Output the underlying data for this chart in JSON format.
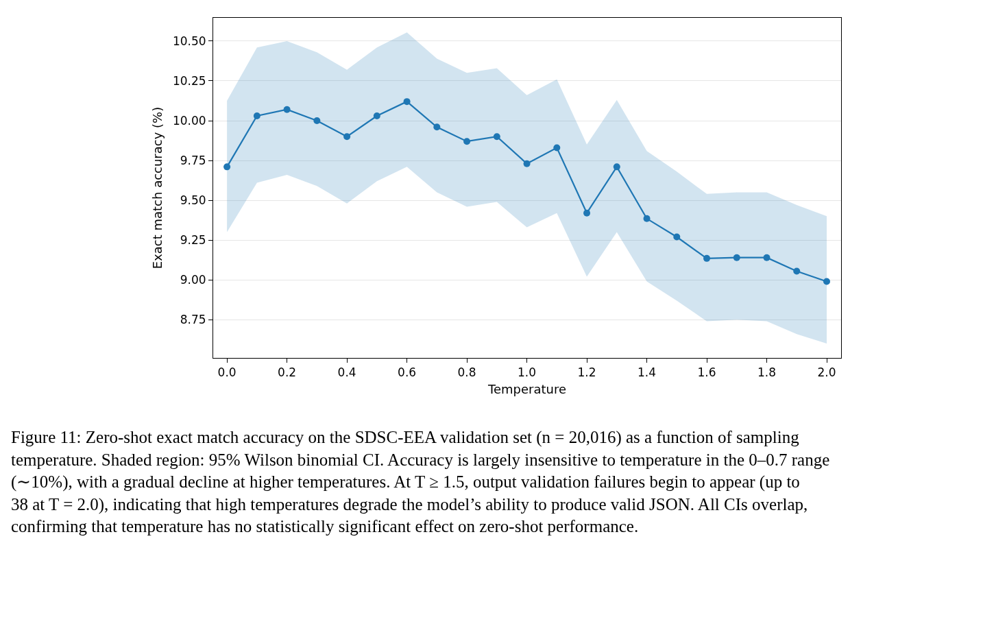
{
  "chart_data": {
    "type": "line",
    "xlabel": "Temperature",
    "ylabel": "Exact match accuracy (%)",
    "x": [
      0.0,
      0.1,
      0.2,
      0.3,
      0.4,
      0.5,
      0.6,
      0.7,
      0.8,
      0.9,
      1.0,
      1.1,
      1.2,
      1.3,
      1.4,
      1.5,
      1.6,
      1.7,
      1.8,
      1.9,
      2.0
    ],
    "series": [
      {
        "color": "#1f77b4",
        "values": [
          9.71,
          10.03,
          10.07,
          10.0,
          9.9,
          10.03,
          10.12,
          9.96,
          9.87,
          9.9,
          9.73,
          9.83,
          9.42,
          9.71,
          9.385,
          9.27,
          9.135,
          9.14,
          9.14,
          9.055,
          8.99
        ],
        "lower": [
          9.3,
          9.61,
          9.66,
          9.59,
          9.48,
          9.62,
          9.71,
          9.55,
          9.46,
          9.49,
          9.33,
          9.42,
          9.02,
          9.3,
          8.99,
          8.87,
          8.74,
          8.75,
          8.74,
          8.66,
          8.6
        ],
        "upper": [
          10.125,
          10.46,
          10.5,
          10.43,
          10.32,
          10.46,
          10.555,
          10.39,
          10.3,
          10.33,
          10.16,
          10.26,
          9.85,
          10.13,
          9.81,
          9.68,
          9.54,
          9.55,
          9.55,
          9.47,
          9.4
        ]
      }
    ],
    "xlim": [
      -0.046,
      2.048
    ],
    "xticks": [
      {
        "value": 0,
        "label": "0.0"
      },
      {
        "value": 0.2,
        "label": "0.2"
      },
      {
        "value": 0.4,
        "label": "0.4"
      },
      {
        "value": 0.6,
        "label": "0.6"
      },
      {
        "value": 0.8,
        "label": "0.8"
      },
      {
        "value": 1.0,
        "label": "1.0"
      },
      {
        "value": 1.2,
        "label": "1.2"
      },
      {
        "value": 1.4,
        "label": "1.4"
      },
      {
        "value": 1.6,
        "label": "1.6"
      },
      {
        "value": 1.8,
        "label": "1.8"
      },
      {
        "value": 2.0,
        "label": "2.0"
      }
    ],
    "ylim": [
      8.51,
      10.646
    ],
    "yticks": [
      8.75,
      {
        "value": 9.0,
        "label": "9.00"
      },
      9.25,
      {
        "value": 9.5,
        "label": "9.50"
      },
      9.75,
      {
        "value": 10.0,
        "label": "10.00"
      },
      10.25,
      {
        "value": 10.5,
        "label": "10.50"
      }
    ],
    "grid": "y",
    "marker": "circle",
    "line_style": "solid",
    "annotations": [
      "Figure 11: Zero-shot exact match accuracy on the SDSC-EEA validation set (n = 20,016) as a function of sampling temperature. Shaded region: 95% Wilson binomial CI. Accuracy is largely insensitive to temperature in the 0–0.7 range (∼10%), with a gradual decline at higher temperatures. At T ≥ 1.5, output validation failures begin to appear (up to 38 at T = 2.0), indicating that high temperatures degrade the model’s ability to produce valid JSON. All CIs overlap, confirming that temperature has no statistically significant effect on zero-shot performance."
    ]
  }
}
